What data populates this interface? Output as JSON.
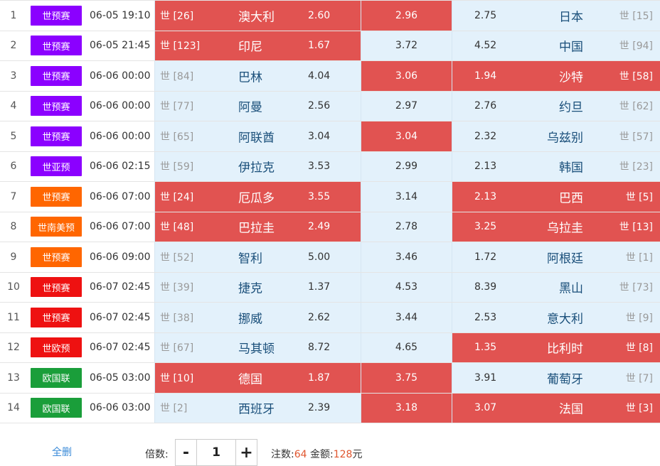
{
  "matches": [
    {
      "idx": "1",
      "league": "世预赛",
      "league_color": "#8b00ff",
      "time": "06-05 19:10",
      "home_rank": "世 [26]",
      "home": "澳大利",
      "home_odd": "2.60",
      "draw": "2.96",
      "away_odd": "2.75",
      "away": "日本",
      "away_rank": "世 [15]",
      "home_hl": true,
      "draw_hl": true,
      "away_hl": false
    },
    {
      "idx": "2",
      "league": "世预赛",
      "league_color": "#8b00ff",
      "time": "06-05 21:45",
      "home_rank": "世 [123]",
      "home": "印尼",
      "home_odd": "1.67",
      "draw": "3.72",
      "away_odd": "4.52",
      "away": "中国",
      "away_rank": "世 [94]",
      "home_hl": true,
      "draw_hl": false,
      "away_hl": false
    },
    {
      "idx": "3",
      "league": "世预赛",
      "league_color": "#8b00ff",
      "time": "06-06 00:00",
      "home_rank": "世 [84]",
      "home": "巴林",
      "home_odd": "4.04",
      "draw": "3.06",
      "away_odd": "1.94",
      "away": "沙特",
      "away_rank": "世 [58]",
      "home_hl": false,
      "draw_hl": true,
      "away_hl": true
    },
    {
      "idx": "4",
      "league": "世预赛",
      "league_color": "#8b00ff",
      "time": "06-06 00:00",
      "home_rank": "世 [77]",
      "home": "阿曼",
      "home_odd": "2.56",
      "draw": "2.97",
      "away_odd": "2.76",
      "away": "约旦",
      "away_rank": "世 [62]",
      "home_hl": false,
      "draw_hl": false,
      "away_hl": false
    },
    {
      "idx": "5",
      "league": "世预赛",
      "league_color": "#8b00ff",
      "time": "06-06 00:00",
      "home_rank": "世 [65]",
      "home": "阿联酋",
      "home_odd": "3.04",
      "draw": "3.04",
      "away_odd": "2.32",
      "away": "乌兹别",
      "away_rank": "世 [57]",
      "home_hl": false,
      "draw_hl": true,
      "away_hl": false
    },
    {
      "idx": "6",
      "league": "世亚预",
      "league_color": "#8b00ff",
      "time": "06-06 02:15",
      "home_rank": "世 [59]",
      "home": "伊拉克",
      "home_odd": "3.53",
      "draw": "2.99",
      "away_odd": "2.13",
      "away": "韩国",
      "away_rank": "世 [23]",
      "home_hl": false,
      "draw_hl": false,
      "away_hl": false
    },
    {
      "idx": "7",
      "league": "世预赛",
      "league_color": "#ff6600",
      "time": "06-06 07:00",
      "home_rank": "世 [24]",
      "home": "厄瓜多",
      "home_odd": "3.55",
      "draw": "3.14",
      "away_odd": "2.13",
      "away": "巴西",
      "away_rank": "世 [5]",
      "home_hl": true,
      "draw_hl": false,
      "away_hl": true
    },
    {
      "idx": "8",
      "league": "世南美预",
      "league_color": "#ff6600",
      "time": "06-06 07:00",
      "home_rank": "世 [48]",
      "home": "巴拉圭",
      "home_odd": "2.49",
      "draw": "2.78",
      "away_odd": "3.25",
      "away": "乌拉圭",
      "away_rank": "世 [13]",
      "home_hl": true,
      "draw_hl": false,
      "away_hl": true
    },
    {
      "idx": "9",
      "league": "世预赛",
      "league_color": "#ff6600",
      "time": "06-06 09:00",
      "home_rank": "世 [52]",
      "home": "智利",
      "home_odd": "5.00",
      "draw": "3.46",
      "away_odd": "1.72",
      "away": "阿根廷",
      "away_rank": "世 [1]",
      "home_hl": false,
      "draw_hl": false,
      "away_hl": false
    },
    {
      "idx": "10",
      "league": "世预赛",
      "league_color": "#ee1111",
      "time": "06-07 02:45",
      "home_rank": "世 [39]",
      "home": "捷克",
      "home_odd": "1.37",
      "draw": "4.53",
      "away_odd": "8.39",
      "away": "黑山",
      "away_rank": "世 [73]",
      "home_hl": false,
      "draw_hl": false,
      "away_hl": false
    },
    {
      "idx": "11",
      "league": "世预赛",
      "league_color": "#ee1111",
      "time": "06-07 02:45",
      "home_rank": "世 [38]",
      "home": "挪威",
      "home_odd": "2.62",
      "draw": "3.44",
      "away_odd": "2.53",
      "away": "意大利",
      "away_rank": "世 [9]",
      "home_hl": false,
      "draw_hl": false,
      "away_hl": false
    },
    {
      "idx": "12",
      "league": "世欧预",
      "league_color": "#ee1111",
      "time": "06-07 02:45",
      "home_rank": "世 [67]",
      "home": "马其顿",
      "home_odd": "8.72",
      "draw": "4.65",
      "away_odd": "1.35",
      "away": "比利时",
      "away_rank": "世 [8]",
      "home_hl": false,
      "draw_hl": false,
      "away_hl": true
    },
    {
      "idx": "13",
      "league": "欧国联",
      "league_color": "#1a9e3a",
      "time": "06-05 03:00",
      "home_rank": "世 [10]",
      "home": "德国",
      "home_odd": "1.87",
      "draw": "3.75",
      "away_odd": "3.91",
      "away": "葡萄牙",
      "away_rank": "世 [7]",
      "home_hl": true,
      "draw_hl": true,
      "away_hl": false
    },
    {
      "idx": "14",
      "league": "欧国联",
      "league_color": "#1a9e3a",
      "time": "06-06 03:00",
      "home_rank": "世 [2]",
      "home": "西班牙",
      "home_odd": "2.39",
      "draw": "3.18",
      "away_odd": "3.07",
      "away": "法国",
      "away_rank": "世 [3]",
      "home_hl": false,
      "draw_hl": true,
      "away_hl": true
    }
  ],
  "footer": {
    "clear_all": "全删",
    "multiplier_label": "倍数:",
    "minus": "-",
    "plus": "+",
    "multiplier_value": "1",
    "bets_label": "注数:",
    "bets_value": "64",
    "amount_label": "金额:",
    "amount_value": "128",
    "currency": "元"
  },
  "colors": {
    "highlight": "#e15351",
    "normal": "#e3f1fb",
    "accent": "#e0562f",
    "link": "#3a8ad8"
  }
}
